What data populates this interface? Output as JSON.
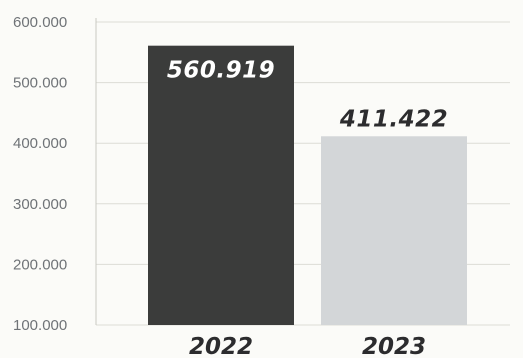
{
  "chart_data": {
    "type": "bar",
    "categories": [
      "2022",
      "2023"
    ],
    "values": [
      560919,
      411422
    ],
    "value_labels": [
      "560.919",
      "411.422"
    ],
    "y_ticks": [
      100000,
      200000,
      300000,
      400000,
      500000,
      600000
    ],
    "y_tick_labels": [
      "100.000",
      "200.000",
      "300.000",
      "400.000",
      "500.000",
      "600.000"
    ],
    "ylim": [
      100000,
      600000
    ],
    "title": "",
    "xlabel": "",
    "ylabel": "",
    "grid": true,
    "legend": "none",
    "colors": {
      "bar_2022": "#3b3c3b",
      "bar_2023": "#d3d6d8",
      "label_on_dark": "#ffffff",
      "label_on_light": "#2c2c2e",
      "gridline": "#dcdcd6"
    }
  }
}
